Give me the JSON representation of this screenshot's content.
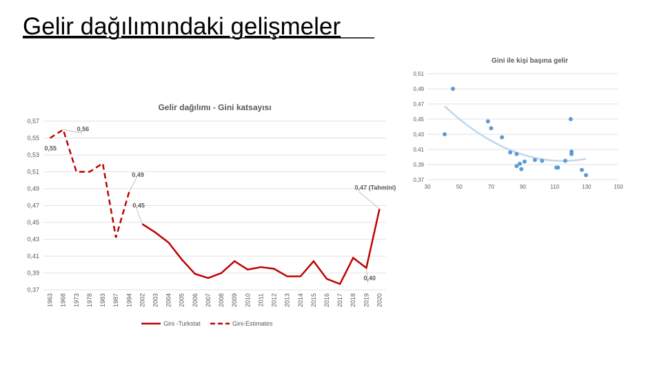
{
  "slide_title": "Gelir dağılımındaki gelişmeler",
  "chart_data": [
    {
      "type": "line",
      "title": "Gelir dağılımı - Gini katsayısı",
      "categories": [
        "1963",
        "1968",
        "1973",
        "1978",
        "1983",
        "1987",
        "1994",
        "2002",
        "2003",
        "2004",
        "2005",
        "2006",
        "2007",
        "2008",
        "2009",
        "2010",
        "2011",
        "2012",
        "2013",
        "2014",
        "2015",
        "2016",
        "2017",
        "2018",
        "2019",
        "2020"
      ],
      "series": [
        {
          "name": "Gini -Turkstat",
          "color": "#c00000",
          "dash": false,
          "values": [
            null,
            null,
            null,
            null,
            null,
            null,
            null,
            0.448,
            0.438,
            0.426,
            0.406,
            0.389,
            0.384,
            0.39,
            0.404,
            0.394,
            0.397,
            0.395,
            0.386,
            0.386,
            0.404,
            0.383,
            0.377,
            0.408,
            0.396,
            0.466
          ],
          "value_labels": [
            null,
            null,
            null,
            null,
            null,
            null,
            null,
            "0,45",
            null,
            null,
            null,
            null,
            null,
            null,
            null,
            null,
            null,
            null,
            null,
            null,
            null,
            null,
            null,
            null,
            "0,40",
            "0,47 (Tahmini)"
          ]
        },
        {
          "name": "Gini-Estimates",
          "color": "#c00000",
          "dash": true,
          "values": [
            0.55,
            0.56,
            0.51,
            0.51,
            0.52,
            0.432,
            0.486,
            null,
            null,
            null,
            null,
            null,
            null,
            null,
            null,
            null,
            null,
            null,
            null,
            null,
            null,
            null,
            null,
            null,
            null,
            null
          ],
          "value_labels": [
            "0,55",
            "0,56",
            null,
            null,
            null,
            null,
            "0,49",
            null,
            null,
            null,
            null,
            null,
            null,
            null,
            null,
            null,
            null,
            null,
            null,
            null,
            null,
            null,
            null,
            null,
            null,
            null
          ]
        }
      ],
      "ylim": [
        0.37,
        0.57
      ],
      "yticks": [
        {
          "value": 0.37,
          "label": "0,37"
        },
        {
          "value": 0.39,
          "label": "0,39"
        },
        {
          "value": 0.41,
          "label": "0,41"
        },
        {
          "value": 0.43,
          "label": "0,43"
        },
        {
          "value": 0.45,
          "label": "0,45"
        },
        {
          "value": 0.47,
          "label": "0,47"
        },
        {
          "value": 0.49,
          "label": "0,49"
        },
        {
          "value": 0.51,
          "label": "0,51"
        },
        {
          "value": 0.53,
          "label": "0,53"
        },
        {
          "value": 0.55,
          "label": "0,55"
        },
        {
          "value": 0.57,
          "label": "0,57"
        }
      ],
      "grid": true,
      "legend": "bottom"
    },
    {
      "type": "scatter",
      "title": "Gini ile kişi başına gelir",
      "color": "#5b9bd5",
      "trendline_color": "#bdd7ee",
      "x": [
        40.8,
        46,
        68,
        70,
        76.8,
        82,
        86,
        86,
        88,
        89,
        91,
        97.5,
        102,
        111,
        112,
        116.6,
        120,
        120.5,
        120.5,
        127,
        129.6
      ],
      "values": [
        0.43,
        0.49,
        0.447,
        0.438,
        0.426,
        0.406,
        0.404,
        0.388,
        0.391,
        0.384,
        0.394,
        0.396,
        0.395,
        0.386,
        0.386,
        0.395,
        0.45,
        0.407,
        0.404,
        0.383,
        0.376
      ],
      "xlim": [
        30,
        150
      ],
      "xticks": [
        30,
        50,
        70,
        90,
        110,
        130,
        150
      ],
      "ylim": [
        0.37,
        0.51
      ],
      "yticks": [
        {
          "value": 0.37,
          "label": "0,37"
        },
        {
          "value": 0.39,
          "label": "0,39"
        },
        {
          "value": 0.41,
          "label": "0,41"
        },
        {
          "value": 0.43,
          "label": "0,43"
        },
        {
          "value": 0.45,
          "label": "0,45"
        },
        {
          "value": 0.47,
          "label": "0,47"
        },
        {
          "value": 0.49,
          "label": "0,49"
        },
        {
          "value": 0.51,
          "label": "0,51"
        }
      ],
      "grid": true
    }
  ]
}
